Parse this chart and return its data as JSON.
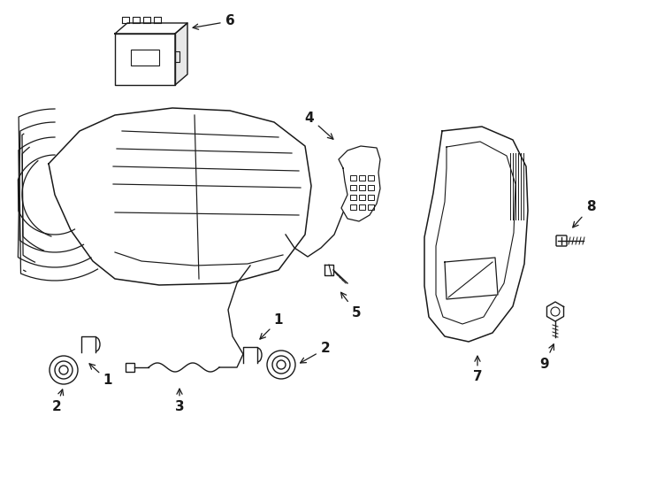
{
  "bg_color": "#ffffff",
  "line_color": "#1a1a1a",
  "lw": 1.0,
  "fig_w": 7.34,
  "fig_h": 5.4
}
